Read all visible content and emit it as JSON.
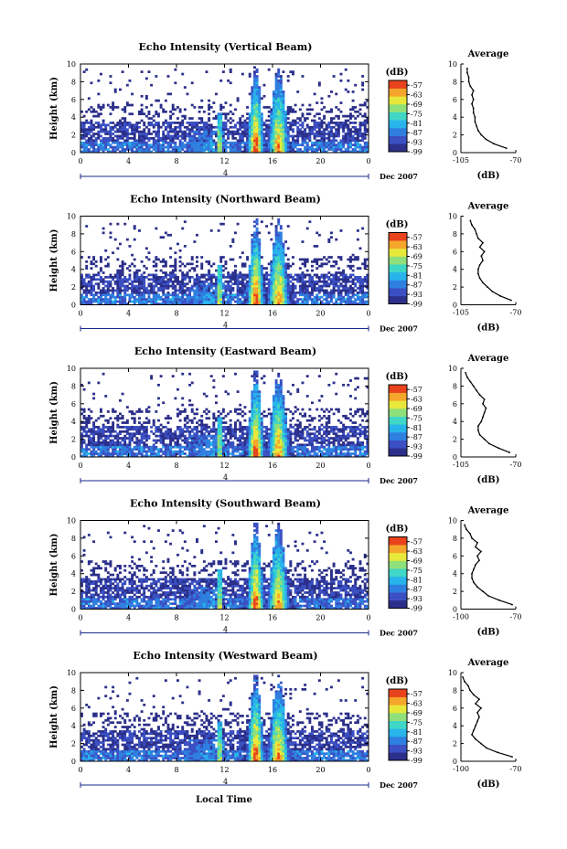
{
  "chart_data": [
    {
      "type": "heatmap",
      "title": "Echo Intensity (Vertical Beam)",
      "ylabel": "Height (km)",
      "x_ticks": [
        "0",
        "4",
        "8",
        "12",
        "16",
        "20",
        "0"
      ],
      "y_ticks": [
        "0",
        "2",
        "4",
        "6",
        "8",
        "10"
      ],
      "xlim": [
        0,
        24
      ],
      "ylim": [
        0,
        10
      ],
      "date_tick": "4",
      "date_label": "Dec 2007",
      "colorbar": {
        "unit": "(dB)",
        "ticks": [
          "-57",
          "-63",
          "-69",
          "-75",
          "-81",
          "-87",
          "-93",
          "-99"
        ],
        "range": [
          -99,
          -54
        ]
      },
      "average": {
        "title": "Average",
        "xlabel": "(dB)",
        "x_ticks": [
          "-105",
          "-70"
        ],
        "y_ticks": [
          "0",
          "2",
          "4",
          "6",
          "8",
          "10"
        ],
        "xlim": [
          -105,
          -70
        ],
        "height": [
          0.5,
          1,
          1.5,
          2,
          2.5,
          3,
          3.5,
          4,
          4.5,
          5,
          5.5,
          6,
          6.5,
          7,
          7.5,
          8,
          8.5,
          9,
          9.5
        ],
        "value": [
          -76,
          -84,
          -89,
          -92,
          -94,
          -95,
          -96,
          -96,
          -97,
          -97,
          -98,
          -97,
          -98,
          -97,
          -99,
          -100,
          -100,
          -101,
          -101
        ]
      }
    },
    {
      "type": "heatmap",
      "title": "Echo Intensity (Northward Beam)",
      "ylabel": "Height (km)",
      "x_ticks": [
        "0",
        "4",
        "8",
        "12",
        "16",
        "20",
        "0"
      ],
      "y_ticks": [
        "0",
        "2",
        "4",
        "6",
        "8",
        "10"
      ],
      "xlim": [
        0,
        24
      ],
      "ylim": [
        0,
        10
      ],
      "date_tick": "4",
      "date_label": "Dec 2007",
      "colorbar": {
        "unit": "(dB)",
        "ticks": [
          "-57",
          "-63",
          "-69",
          "-75",
          "-81",
          "-87",
          "-93",
          "-99"
        ],
        "range": [
          -99,
          -54
        ]
      },
      "average": {
        "title": "Average",
        "xlabel": "(dB)",
        "x_ticks": [
          "-105",
          "-70"
        ],
        "y_ticks": [
          "0",
          "2",
          "4",
          "6",
          "8",
          "10"
        ],
        "xlim": [
          -105,
          -70
        ],
        "height": [
          0.5,
          1,
          1.5,
          2,
          2.5,
          3,
          3.5,
          4,
          4.5,
          5,
          5.5,
          6,
          6.5,
          7,
          7.5,
          8,
          8.5,
          9,
          9.5
        ],
        "value": [
          -73,
          -80,
          -85,
          -88,
          -91,
          -93,
          -94,
          -94,
          -93,
          -91,
          -92,
          -90,
          -93,
          -91,
          -94,
          -95,
          -96,
          -98,
          -99
        ]
      }
    },
    {
      "type": "heatmap",
      "title": "Echo Intensity (Eastward Beam)",
      "ylabel": "Height (km)",
      "x_ticks": [
        "0",
        "4",
        "8",
        "12",
        "16",
        "20",
        "0"
      ],
      "y_ticks": [
        "0",
        "2",
        "4",
        "6",
        "8",
        "10"
      ],
      "xlim": [
        0,
        24
      ],
      "ylim": [
        0,
        10
      ],
      "date_tick": "4",
      "date_label": "Dec 2007",
      "colorbar": {
        "unit": "(dB)",
        "ticks": [
          "-57",
          "-63",
          "-69",
          "-75",
          "-81",
          "-87",
          "-93",
          "-99"
        ],
        "range": [
          -99,
          -54
        ]
      },
      "average": {
        "title": "Average",
        "xlabel": "(dB)",
        "x_ticks": [
          "-105",
          "-70"
        ],
        "y_ticks": [
          "0",
          "2",
          "4",
          "6",
          "8",
          "10"
        ],
        "xlim": [
          -105,
          -70
        ],
        "height": [
          0.5,
          1,
          1.5,
          2,
          2.5,
          3,
          3.5,
          4,
          4.5,
          5,
          5.5,
          6,
          6.5,
          7,
          7.5,
          8,
          8.5,
          9,
          9.5
        ],
        "value": [
          -74,
          -81,
          -87,
          -90,
          -93,
          -94,
          -94,
          -92,
          -91,
          -90,
          -89,
          -91,
          -90,
          -93,
          -95,
          -97,
          -99,
          -101,
          -102
        ]
      }
    },
    {
      "type": "heatmap",
      "title": "Echo Intensity (Southward Beam)",
      "ylabel": "Height (km)",
      "x_ticks": [
        "0",
        "4",
        "8",
        "12",
        "16",
        "20",
        "0"
      ],
      "y_ticks": [
        "0",
        "2",
        "4",
        "6",
        "8",
        "10"
      ],
      "xlim": [
        0,
        24
      ],
      "ylim": [
        0,
        10
      ],
      "date_tick": "4",
      "date_label": "Dec 2007",
      "colorbar": {
        "unit": "(dB)",
        "ticks": [
          "-57",
          "-63",
          "-69",
          "-75",
          "-81",
          "-87",
          "-93",
          "-99"
        ],
        "range": [
          -99,
          -54
        ]
      },
      "average": {
        "title": "Average",
        "xlabel": "(dB)",
        "x_ticks": [
          "-100",
          "-70"
        ],
        "y_ticks": [
          "0",
          "2",
          "4",
          "6",
          "8",
          "10"
        ],
        "xlim": [
          -100,
          -70
        ],
        "height": [
          0.5,
          1,
          1.5,
          2,
          2.5,
          3,
          3.5,
          4,
          4.5,
          5,
          5.5,
          6,
          6.5,
          7,
          7.5,
          8,
          8.5,
          9,
          9.5
        ],
        "value": [
          -72,
          -79,
          -85,
          -88,
          -91,
          -93,
          -94,
          -94,
          -93,
          -92,
          -90,
          -91,
          -89,
          -92,
          -91,
          -94,
          -95,
          -97,
          -98
        ]
      }
    },
    {
      "type": "heatmap",
      "title": "Echo Intensity (Westward Beam)",
      "ylabel": "Height (km)",
      "x_ticks": [
        "0",
        "4",
        "8",
        "12",
        "16",
        "20",
        "0"
      ],
      "y_ticks": [
        "0",
        "2",
        "4",
        "6",
        "8",
        "10"
      ],
      "xlim": [
        0,
        24
      ],
      "ylim": [
        0,
        10
      ],
      "date_tick": "4",
      "date_label": "Dec 2007",
      "colorbar": {
        "unit": "(dB)",
        "ticks": [
          "-57",
          "-63",
          "-69",
          "-75",
          "-81",
          "-87",
          "-93",
          "-99"
        ],
        "range": [
          -99,
          -54
        ]
      },
      "average": {
        "title": "Average",
        "xlabel": "(dB)",
        "x_ticks": [
          "-100",
          "-70"
        ],
        "y_ticks": [
          "0",
          "2",
          "4",
          "6",
          "8",
          "10"
        ],
        "xlim": [
          -100,
          -70
        ],
        "height": [
          0.5,
          1,
          1.5,
          2,
          2.5,
          3,
          3.5,
          4,
          4.5,
          5,
          5.5,
          6,
          6.5,
          7,
          7.5,
          8,
          8.5,
          9,
          9.5
        ],
        "value": [
          -72,
          -80,
          -86,
          -89,
          -92,
          -94,
          -93,
          -92,
          -91,
          -90,
          -91,
          -89,
          -92,
          -90,
          -93,
          -95,
          -96,
          -98,
          -99
        ]
      }
    }
  ],
  "xlabel": "Local Time"
}
